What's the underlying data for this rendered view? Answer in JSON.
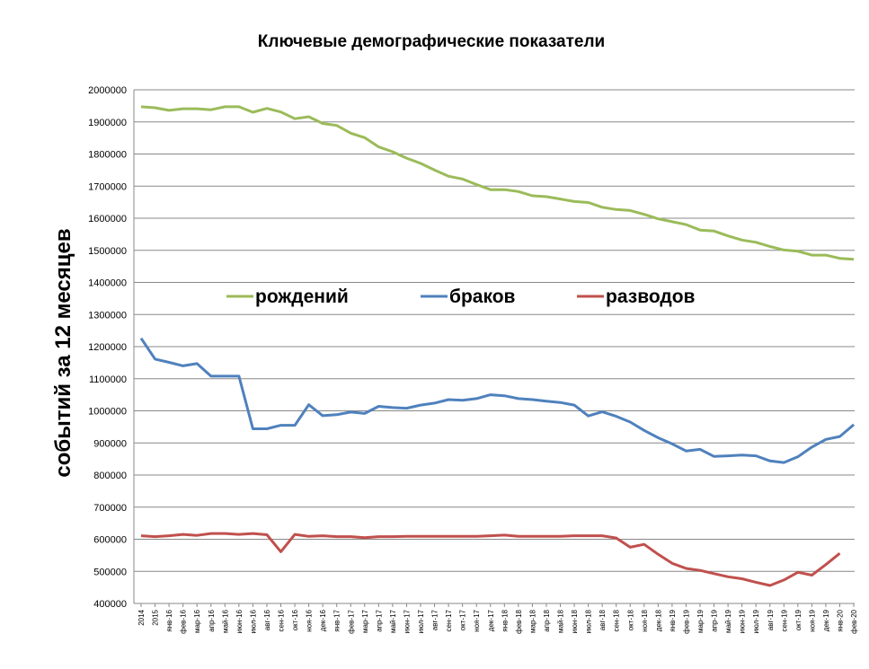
{
  "chart_data": {
    "type": "line",
    "title": "Ключевые демографические показатели",
    "xlabel": "",
    "ylabel": "событий за 12  месяцев",
    "ylim": [
      400000,
      2000000
    ],
    "yticks": [
      "2000000",
      "1900000",
      "1800000",
      "1700000",
      "1600000",
      "1500000",
      "1400000",
      "1300000",
      "1200000",
      "1100000",
      "1000000",
      "900000",
      "800000",
      "700000",
      "600000",
      "500000",
      "400000"
    ],
    "grid": true,
    "legend_position": "center-right",
    "categories": [
      "2014",
      "2015",
      "янв-16",
      "фев-16",
      "мар-16",
      "апр-16",
      "май-16",
      "июн-16",
      "июл-16",
      "авг-16",
      "сен-16",
      "окт-16",
      "ноя-16",
      "дек-16",
      "янв-17",
      "фев-17",
      "мар-17",
      "апр-17",
      "май-17",
      "июн-17",
      "июл-17",
      "авг-17",
      "сен-17",
      "окт-17",
      "ноя-17",
      "дек-17",
      "янв-18",
      "фев-18",
      "мар-18",
      "апр-18",
      "май-18",
      "июн-18",
      "июл-18",
      "авг-18",
      "сен-18",
      "окт-18",
      "ноя-18",
      "дек-18",
      "янв-19",
      "фев-19",
      "мар-19",
      "апр-19",
      "май-19",
      "июн-19",
      "июл-19",
      "авг-19",
      "сен-19",
      "окт-19",
      "ноя-19",
      "дек-19",
      "янв-20",
      "фев-20"
    ],
    "series": [
      {
        "name": "рождений",
        "color": "#9bbb59",
        "values": [
          1947000,
          1944000,
          1936000,
          1941000,
          1941000,
          1938000,
          1947000,
          1947000,
          1930000,
          1942000,
          1931000,
          1910000,
          1916000,
          1895000,
          1889000,
          1865000,
          1851000,
          1822000,
          1807000,
          1787000,
          1771000,
          1750000,
          1731000,
          1722000,
          1705000,
          1689000,
          1689000,
          1683000,
          1670000,
          1667000,
          1660000,
          1652000,
          1649000,
          1634000,
          1627000,
          1624000,
          1612000,
          1598000,
          1589000,
          1580000,
          1563000,
          1560000,
          1545000,
          1532000,
          1525000,
          1512000,
          1501000,
          1497000,
          1485000,
          1485000,
          1475000,
          1472000
        ]
      },
      {
        "name": "браков",
        "color": "#4f81bd",
        "values": [
          1226000,
          1161000,
          1151000,
          1140000,
          1147000,
          1108000,
          1108000,
          1108000,
          944000,
          944000,
          955000,
          955000,
          1019000,
          985000,
          988000,
          996000,
          992000,
          1014000,
          1010000,
          1008000,
          1018000,
          1024000,
          1035000,
          1033000,
          1038000,
          1050000,
          1047000,
          1038000,
          1035000,
          1030000,
          1026000,
          1018000,
          984000,
          997000,
          983000,
          965000,
          939000,
          916000,
          897000,
          875000,
          880000,
          858000,
          860000,
          862000,
          860000,
          844000,
          839000,
          857000,
          887000,
          911000,
          920000,
          957000
        ]
      },
      {
        "name": "разводов",
        "color": "#c0504d",
        "values": [
          611000,
          608000,
          611000,
          615000,
          612000,
          618000,
          618000,
          615000,
          618000,
          614000,
          561000,
          615000,
          609000,
          611000,
          608000,
          608000,
          605000,
          608000,
          608000,
          609000,
          609000,
          609000,
          609000,
          609000,
          609000,
          611000,
          613000,
          609000,
          609000,
          609000,
          609000,
          611000,
          611000,
          611000,
          604000,
          575000,
          584000,
          553000,
          525000,
          509000,
          503000,
          493000,
          483000,
          477000,
          466000,
          456000,
          473000,
          497000,
          488000,
          521000,
          556000,
          null
        ]
      }
    ]
  }
}
